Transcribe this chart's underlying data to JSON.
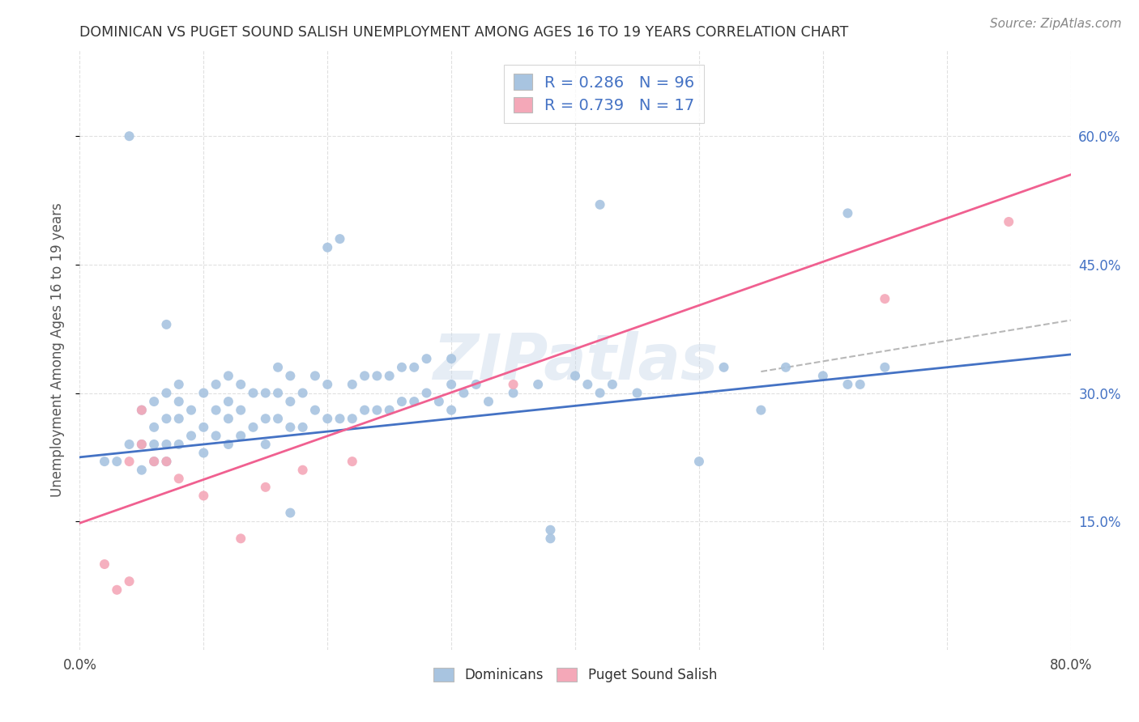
{
  "title": "DOMINICAN VS PUGET SOUND SALISH UNEMPLOYMENT AMONG AGES 16 TO 19 YEARS CORRELATION CHART",
  "source": "Source: ZipAtlas.com",
  "ylabel": "Unemployment Among Ages 16 to 19 years",
  "xlim": [
    0.0,
    0.8
  ],
  "ylim": [
    0.0,
    0.7
  ],
  "x_tick_positions": [
    0.0,
    0.1,
    0.2,
    0.3,
    0.4,
    0.5,
    0.6,
    0.7,
    0.8
  ],
  "x_tick_labels": [
    "0.0%",
    "",
    "",
    "",
    "",
    "",
    "",
    "",
    "80.0%"
  ],
  "y_ticks_right": [
    0.15,
    0.3,
    0.45,
    0.6
  ],
  "y_tick_labels_right": [
    "15.0%",
    "30.0%",
    "45.0%",
    "60.0%"
  ],
  "dominican_color": "#a8c4e0",
  "puget_color": "#f4a8b8",
  "dominican_line_color": "#4472c4",
  "puget_line_color": "#f06090",
  "confidence_color": "#b8b8b8",
  "R_dominican": 0.286,
  "N_dominican": 96,
  "R_puget": 0.739,
  "N_puget": 17,
  "legend_text_color": "#4472c4",
  "watermark": "ZIPatlas",
  "dom_line_x": [
    0.0,
    0.8
  ],
  "dom_line_y": [
    0.225,
    0.345
  ],
  "pug_line_x": [
    0.0,
    0.8
  ],
  "pug_line_y": [
    0.148,
    0.555
  ],
  "conf_line_x": [
    0.55,
    0.8
  ],
  "conf_line_y": [
    0.325,
    0.385
  ],
  "background_color": "#ffffff",
  "grid_color": "#e0e0e0",
  "dom_scatter_x": [
    0.04,
    0.02,
    0.03,
    0.04,
    0.05,
    0.05,
    0.05,
    0.06,
    0.06,
    0.06,
    0.06,
    0.07,
    0.07,
    0.07,
    0.07,
    0.07,
    0.08,
    0.08,
    0.08,
    0.08,
    0.09,
    0.09,
    0.1,
    0.1,
    0.1,
    0.11,
    0.11,
    0.11,
    0.12,
    0.12,
    0.12,
    0.12,
    0.13,
    0.13,
    0.13,
    0.14,
    0.14,
    0.15,
    0.15,
    0.15,
    0.16,
    0.16,
    0.16,
    0.17,
    0.17,
    0.17,
    0.18,
    0.18,
    0.19,
    0.19,
    0.2,
    0.2,
    0.21,
    0.21,
    0.22,
    0.22,
    0.23,
    0.23,
    0.24,
    0.24,
    0.25,
    0.25,
    0.26,
    0.26,
    0.27,
    0.27,
    0.28,
    0.28,
    0.29,
    0.3,
    0.3,
    0.3,
    0.31,
    0.32,
    0.33,
    0.35,
    0.37,
    0.38,
    0.4,
    0.41,
    0.42,
    0.43,
    0.45,
    0.5,
    0.52,
    0.55,
    0.57,
    0.6,
    0.62,
    0.63,
    0.65,
    0.42,
    0.2,
    0.38,
    0.17,
    0.62
  ],
  "dom_scatter_y": [
    0.6,
    0.22,
    0.22,
    0.24,
    0.21,
    0.24,
    0.28,
    0.22,
    0.24,
    0.26,
    0.29,
    0.22,
    0.24,
    0.27,
    0.3,
    0.38,
    0.24,
    0.27,
    0.29,
    0.31,
    0.25,
    0.28,
    0.23,
    0.26,
    0.3,
    0.25,
    0.28,
    0.31,
    0.24,
    0.27,
    0.29,
    0.32,
    0.25,
    0.28,
    0.31,
    0.26,
    0.3,
    0.24,
    0.27,
    0.3,
    0.27,
    0.3,
    0.33,
    0.26,
    0.29,
    0.32,
    0.26,
    0.3,
    0.28,
    0.32,
    0.27,
    0.31,
    0.27,
    0.48,
    0.27,
    0.31,
    0.28,
    0.32,
    0.28,
    0.32,
    0.28,
    0.32,
    0.29,
    0.33,
    0.29,
    0.33,
    0.3,
    0.34,
    0.29,
    0.28,
    0.31,
    0.34,
    0.3,
    0.31,
    0.29,
    0.3,
    0.31,
    0.14,
    0.32,
    0.31,
    0.52,
    0.31,
    0.3,
    0.22,
    0.33,
    0.28,
    0.33,
    0.32,
    0.31,
    0.31,
    0.33,
    0.3,
    0.47,
    0.13,
    0.16,
    0.51
  ],
  "pug_scatter_x": [
    0.02,
    0.03,
    0.04,
    0.04,
    0.05,
    0.05,
    0.06,
    0.07,
    0.08,
    0.1,
    0.13,
    0.15,
    0.18,
    0.22,
    0.35,
    0.65,
    0.75
  ],
  "pug_scatter_y": [
    0.1,
    0.07,
    0.08,
    0.22,
    0.24,
    0.28,
    0.22,
    0.22,
    0.2,
    0.18,
    0.13,
    0.19,
    0.21,
    0.22,
    0.31,
    0.41,
    0.5
  ]
}
